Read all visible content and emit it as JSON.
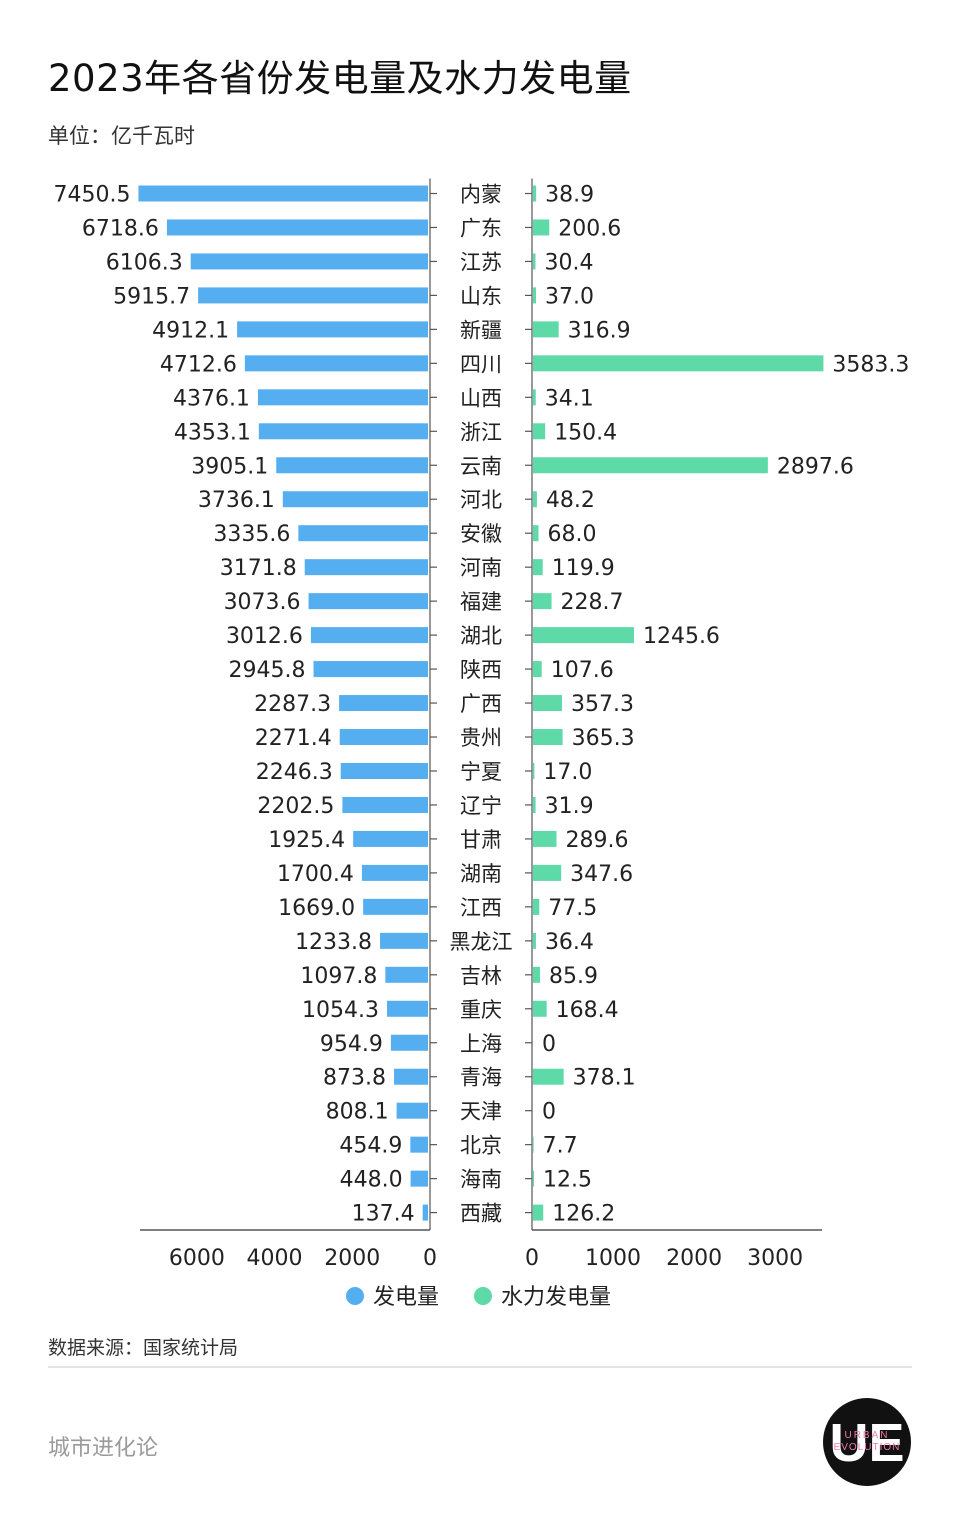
{
  "title": "2023年各省份发电量及水力发电量",
  "unit": "单位：亿千瓦时",
  "source": "数据来源：国家统计局",
  "brand": "城市进化论",
  "logo": {
    "monogram": "UE",
    "text_line1": "URBAN",
    "text_line2": "EVOLUTION"
  },
  "colors": {
    "power": "#55aef0",
    "hydro": "#5ed9a8",
    "axis": "#555555",
    "label": "#222222"
  },
  "chart_data": {
    "type": "bar",
    "orientation": "horizontal-butterfly",
    "categories": [
      "内蒙",
      "广东",
      "江苏",
      "山东",
      "新疆",
      "四川",
      "山西",
      "浙江",
      "云南",
      "河北",
      "安徽",
      "河南",
      "福建",
      "湖北",
      "陕西",
      "广西",
      "贵州",
      "宁夏",
      "辽宁",
      "甘肃",
      "湖南",
      "江西",
      "黑龙江",
      "吉林",
      "重庆",
      "上海",
      "青海",
      "天津",
      "北京",
      "海南",
      "西藏"
    ],
    "series": [
      {
        "name": "发电量",
        "values": [
          7450.5,
          6718.6,
          6106.3,
          5915.7,
          4912.1,
          4712.6,
          4376.1,
          4353.1,
          3905.1,
          3736.1,
          3335.6,
          3171.8,
          3073.6,
          3012.6,
          2945.8,
          2287.3,
          2271.4,
          2246.3,
          2202.5,
          1925.4,
          1700.4,
          1669.0,
          1233.8,
          1097.8,
          1054.3,
          954.9,
          873.8,
          808.1,
          454.9,
          448.0,
          137.4
        ],
        "labels": [
          "7450.5",
          "6718.6",
          "6106.3",
          "5915.7",
          "4912.1",
          "4712.6",
          "4376.1",
          "4353.1",
          "3905.1",
          "3736.1",
          "3335.6",
          "3171.8",
          "3073.6",
          "3012.6",
          "2945.8",
          "2287.3",
          "2271.4",
          "2246.3",
          "2202.5",
          "1925.4",
          "1700.4",
          "1669.0",
          "1233.8",
          "1097.8",
          "1054.3",
          "954.9",
          "873.8",
          "808.1",
          "454.9",
          "448.0",
          "137.4"
        ]
      },
      {
        "name": "水力发电量",
        "values": [
          38.9,
          200.6,
          30.4,
          37.0,
          316.9,
          3583.3,
          34.1,
          150.4,
          2897.6,
          48.2,
          68.0,
          119.9,
          228.7,
          1245.6,
          107.6,
          357.3,
          365.3,
          17.0,
          31.9,
          289.6,
          347.6,
          77.5,
          36.4,
          85.9,
          168.4,
          0,
          378.1,
          0,
          7.7,
          12.5,
          126.2
        ],
        "labels": [
          "38.9",
          "200.6",
          "30.4",
          "37.0",
          "316.9",
          "3583.3",
          "34.1",
          "150.4",
          "2897.6",
          "48.2",
          "68.0",
          "119.9",
          "228.7",
          "1245.6",
          "107.6",
          "357.3",
          "365.3",
          "17.0",
          "31.9",
          "289.6",
          "347.6",
          "77.5",
          "36.4",
          "85.9",
          "168.4",
          "0",
          "378.1",
          "0",
          "7.7",
          "12.5",
          "126.2"
        ]
      }
    ],
    "left_axis": {
      "ticks": [
        "6000",
        "4000",
        "2000",
        "0"
      ]
    },
    "right_axis": {
      "ticks": [
        "0",
        "1000",
        "2000",
        "3000"
      ]
    },
    "legend": [
      "发电量",
      "水力发电量"
    ],
    "legend_position": "bottom-center",
    "grid": false
  }
}
